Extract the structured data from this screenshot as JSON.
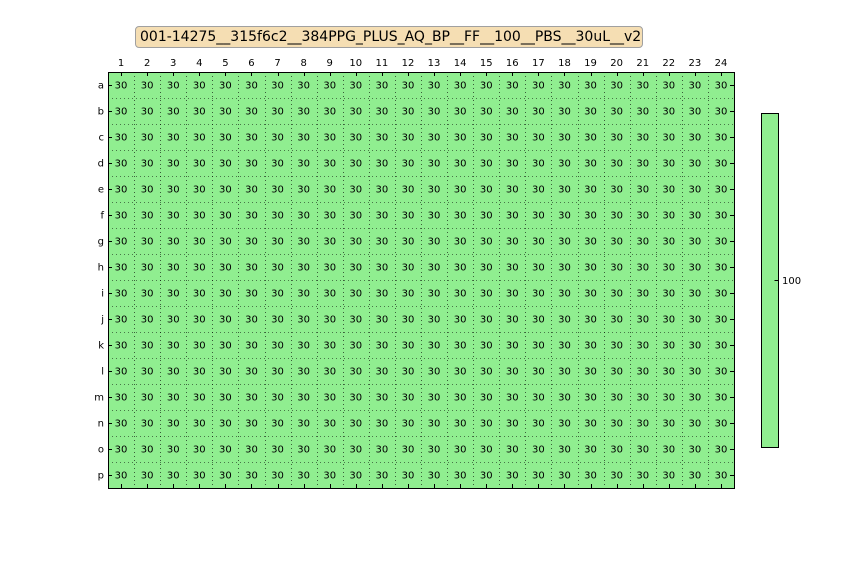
{
  "chart_data": {
    "type": "heatmap",
    "title": "001-14275__315f6c2__384PPG_PLUS_AQ_BP__FF__100__PBS__30uL__v2",
    "columns": [
      "1",
      "2",
      "3",
      "4",
      "5",
      "6",
      "7",
      "8",
      "9",
      "10",
      "11",
      "12",
      "13",
      "14",
      "15",
      "16",
      "17",
      "18",
      "19",
      "20",
      "21",
      "22",
      "23",
      "24"
    ],
    "rows": [
      "a",
      "b",
      "c",
      "d",
      "e",
      "f",
      "g",
      "h",
      "i",
      "j",
      "k",
      "l",
      "m",
      "n",
      "o",
      "p"
    ],
    "cell_value": "30",
    "cell_color": "#90ee90",
    "grid": true,
    "colorbar": {
      "ticks": [
        "100"
      ],
      "color": "#90ee90"
    }
  }
}
